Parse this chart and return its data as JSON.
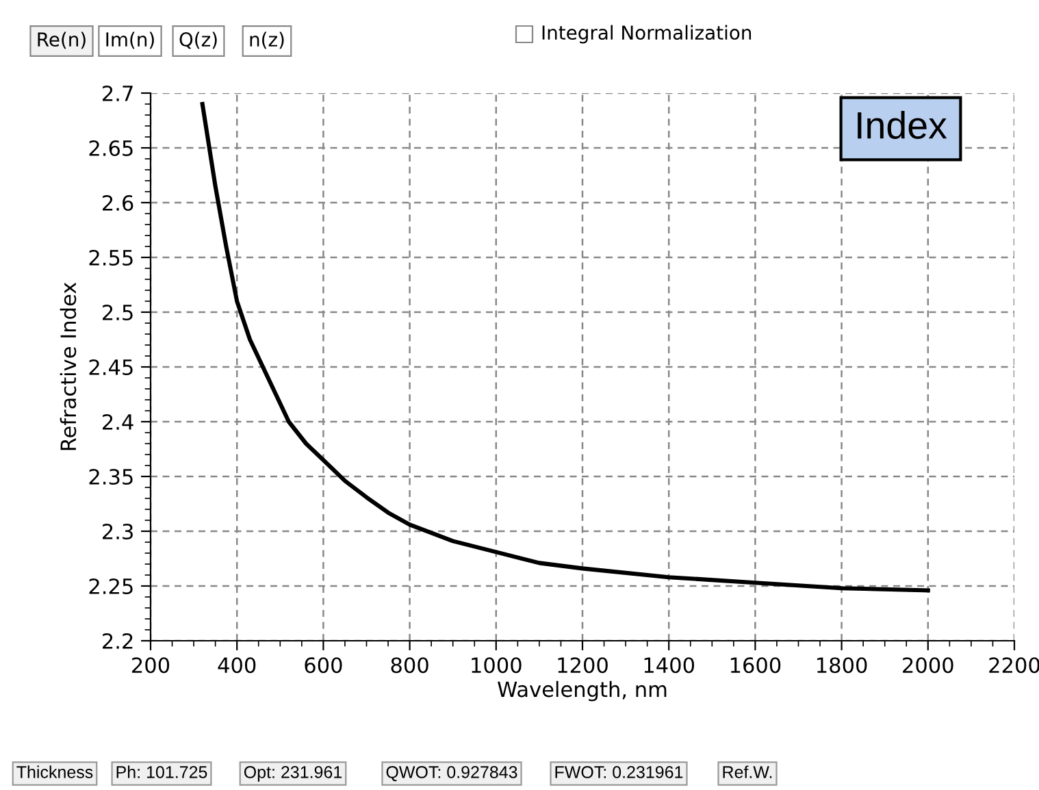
{
  "chart_data": {
    "type": "line",
    "xlabel": "Wavelength, nm",
    "ylabel": "Refractive Index",
    "x": [
      320,
      330,
      350,
      375,
      400,
      430,
      460,
      490,
      520,
      560,
      600,
      650,
      700,
      750,
      800,
      900,
      1000,
      1100,
      1200,
      1400,
      1600,
      1800,
      2000
    ],
    "series": [
      {
        "color": "#000000",
        "values": [
          2.69,
          2.665,
          2.615,
          2.56,
          2.51,
          2.475,
          2.45,
          2.425,
          2.4,
          2.38,
          2.365,
          2.346,
          2.331,
          2.317,
          2.306,
          2.291,
          2.281,
          2.271,
          2.266,
          2.258,
          2.253,
          2.248,
          2.246
        ]
      }
    ],
    "xlim": [
      200,
      2200
    ],
    "xticks": [
      200,
      400,
      600,
      800,
      1000,
      1200,
      1400,
      1600,
      1800,
      2000,
      2200
    ],
    "ylim": [
      2.2,
      2.7
    ],
    "yticks": [
      2.2,
      2.25,
      2.3,
      2.35,
      2.4,
      2.45,
      2.5,
      2.55,
      2.6,
      2.65,
      2.7
    ],
    "grid": true,
    "marker": "none",
    "line_style": "solid",
    "annotations": [
      "Index",
      "Re(n)",
      "Im(n)",
      "Q(z)",
      "n(z)",
      "Integral Normalization",
      "Thickness",
      "Ph: 101.725",
      "Opt: 231.961",
      "QWOT: 0.927843",
      "FWOT: 0.231961",
      "Ref.W."
    ]
  }
}
